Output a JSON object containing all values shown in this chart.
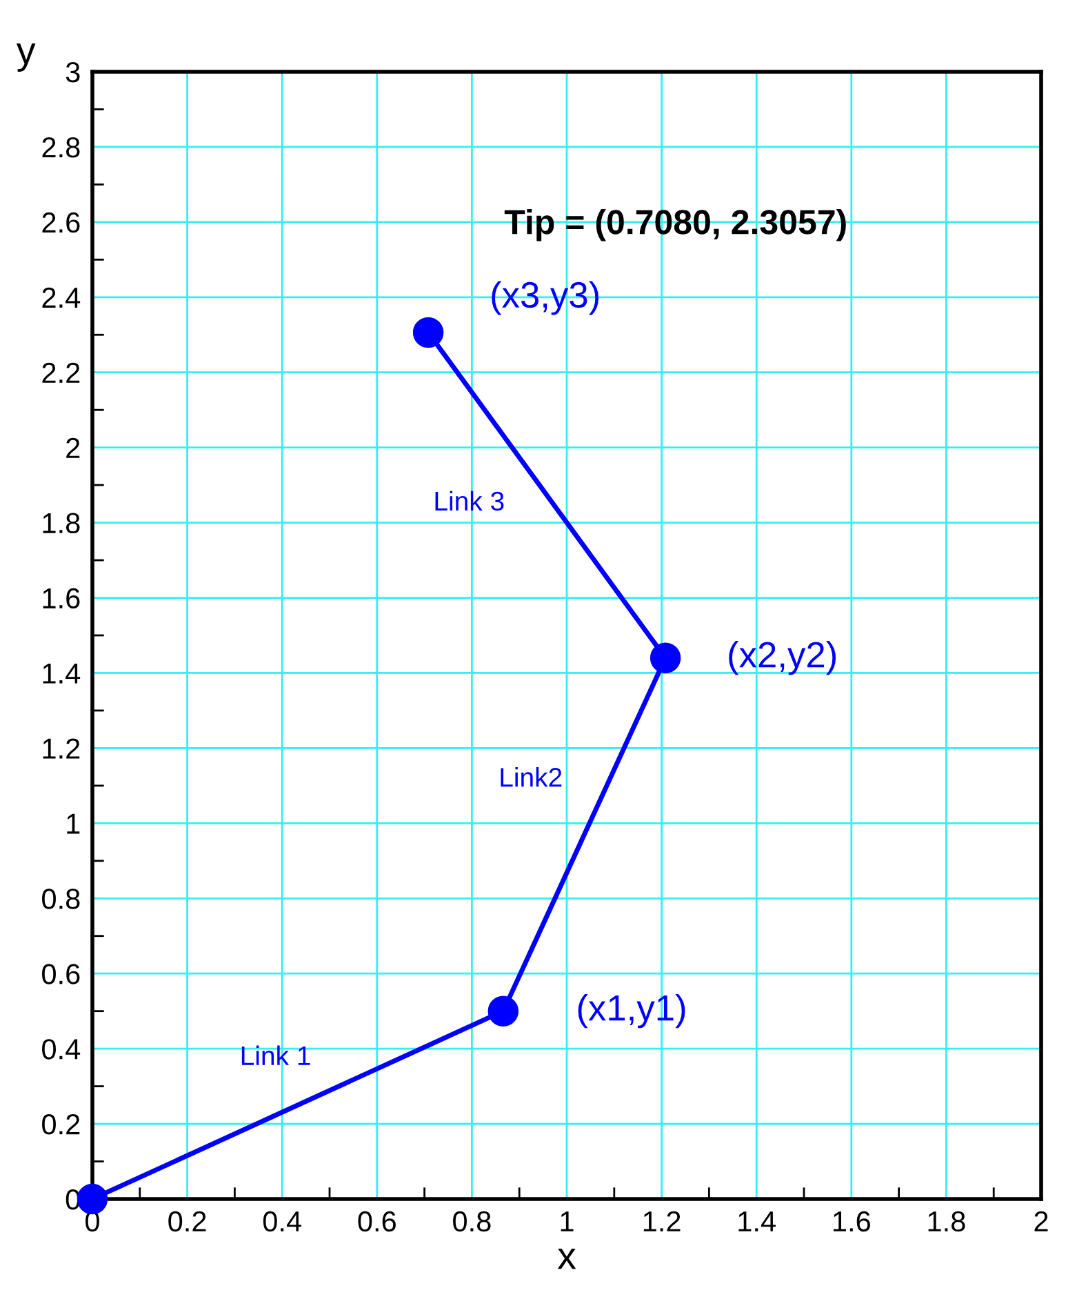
{
  "chart_data": {
    "type": "line",
    "xlabel": "x",
    "ylabel": "y",
    "x": [
      0,
      0.866,
      1.208,
      0.708
    ],
    "series": [
      {
        "color": "#0000ff",
        "values": [
          0,
          0.5,
          1.44,
          2.306
        ]
      }
    ],
    "marker": "circle",
    "line_style": "solid",
    "grid": true,
    "xlim": [
      0,
      2
    ],
    "ylim": [
      0,
      3
    ],
    "xticks": [
      0,
      {
        "value": 0.1,
        "label": null
      },
      0.2,
      {
        "value": 0.3,
        "label": null
      },
      0.4,
      {
        "value": 0.5,
        "label": null
      },
      0.6,
      {
        "value": 0.7,
        "label": null
      },
      0.8,
      {
        "value": 0.9,
        "label": null
      },
      1,
      {
        "value": 1.1,
        "label": null
      },
      1.2,
      {
        "value": 1.3,
        "label": null
      },
      1.4,
      {
        "value": 1.5,
        "label": null
      },
      1.6,
      {
        "value": 1.7,
        "label": null
      },
      1.8,
      {
        "value": 1.9,
        "label": null
      },
      2
    ],
    "yticks": [
      0,
      {
        "value": 0.1,
        "label": null
      },
      0.2,
      {
        "value": 0.3,
        "label": null
      },
      0.4,
      {
        "value": 0.5,
        "label": null
      },
      0.6,
      {
        "value": 0.7,
        "label": null
      },
      0.8,
      {
        "value": 0.9,
        "label": null
      },
      1,
      {
        "value": 1.1,
        "label": null
      },
      1.2,
      {
        "value": 1.3,
        "label": null
      },
      1.4,
      {
        "value": 1.5,
        "label": null
      },
      1.6,
      {
        "value": 1.7,
        "label": null
      },
      1.8,
      {
        "value": 1.9,
        "label": null
      },
      2,
      {
        "value": 2.1,
        "label": null
      },
      2.2,
      {
        "value": 2.3,
        "label": null
      },
      2.4,
      {
        "value": 2.5,
        "label": null
      },
      2.6,
      {
        "value": 2.7,
        "label": null
      },
      2.8,
      {
        "value": 2.9,
        "label": null
      },
      3
    ],
    "annotations": [
      "Tip = (0.7080, 2.3057)",
      {
        "text": "(x1,y1)",
        "x": 0.866,
        "y": 0.5
      },
      {
        "text": "(x2,y2)",
        "x": 1.208,
        "y": 1.44
      },
      {
        "text": "(x3,y3)",
        "x": 0.708,
        "y": 2.306
      },
      "Link 1",
      "Link2",
      "Link 3"
    ]
  }
}
